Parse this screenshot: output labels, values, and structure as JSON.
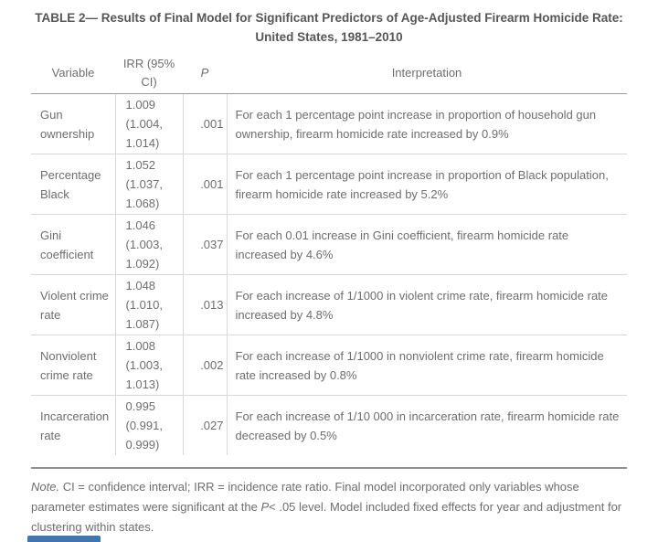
{
  "page": {
    "title_line1": "TABLE 2— Results of Final Model for Significant Predictors of Age-Adjusted Firearm Homicide Rate:",
    "title_line2": "United States, 1981–2010"
  },
  "table": {
    "headers": {
      "variable": "Variable",
      "irr": "IRR (95% CI)",
      "p": "P",
      "interpretation": "Interpretation"
    },
    "rows": [
      {
        "variable": "Gun ownership",
        "irr": "1.009 (1.004, 1.014)",
        "p": ".001",
        "interpretation": "For each 1 percentage point increase in proportion of household gun ownership, firearm homicide rate increased by 0.9%"
      },
      {
        "variable": "Percentage Black",
        "irr": "1.052 (1.037, 1.068)",
        "p": ".001",
        "interpretation": "For each 1 percentage point increase in proportion of Black population, firearm homicide rate increased by 5.2%"
      },
      {
        "variable": "Gini coefficient",
        "irr": "1.046 (1.003, 1.092)",
        "p": ".037",
        "interpretation": "For each 0.01 increase in Gini coefficient, firearm homicide rate increased by 4.6%"
      },
      {
        "variable": "Violent crime rate",
        "irr": "1.048 (1.010, 1.087)",
        "p": ".013",
        "interpretation": "For each increase of 1/1000 in violent crime rate, firearm homicide rate increased by 4.8%"
      },
      {
        "variable": "Nonviolent crime rate",
        "irr": "1.008 (1.003, 1.013)",
        "p": ".002",
        "interpretation": "For each increase of 1/1000 in nonviolent crime rate, firearm homicide rate increased by 0.8%"
      },
      {
        "variable": "Incarceration rate",
        "irr": "0.995 (0.991, 0.999)",
        "p": ".027",
        "interpretation": "For each increase of 1/10 000 in incarceration rate, firearm homicide rate decreased by 0.5%"
      }
    ]
  },
  "note": {
    "label": "Note.",
    "text_before_p": " CI = confidence interval; IRR = incidence rate ratio. Final model incorporated only variables whose parameter estimates were significant at the ",
    "p_symbol": "P",
    "text_after_p": "< .05 level. Model included fixed effects for year and adjustment for clustering within states."
  },
  "colors": {
    "accent_blue": "#3c76b4",
    "title_text": "#565656",
    "body_text": "#6e6e6e",
    "light_border": "#d8d8d8",
    "header_border": "#9b9b9b"
  }
}
